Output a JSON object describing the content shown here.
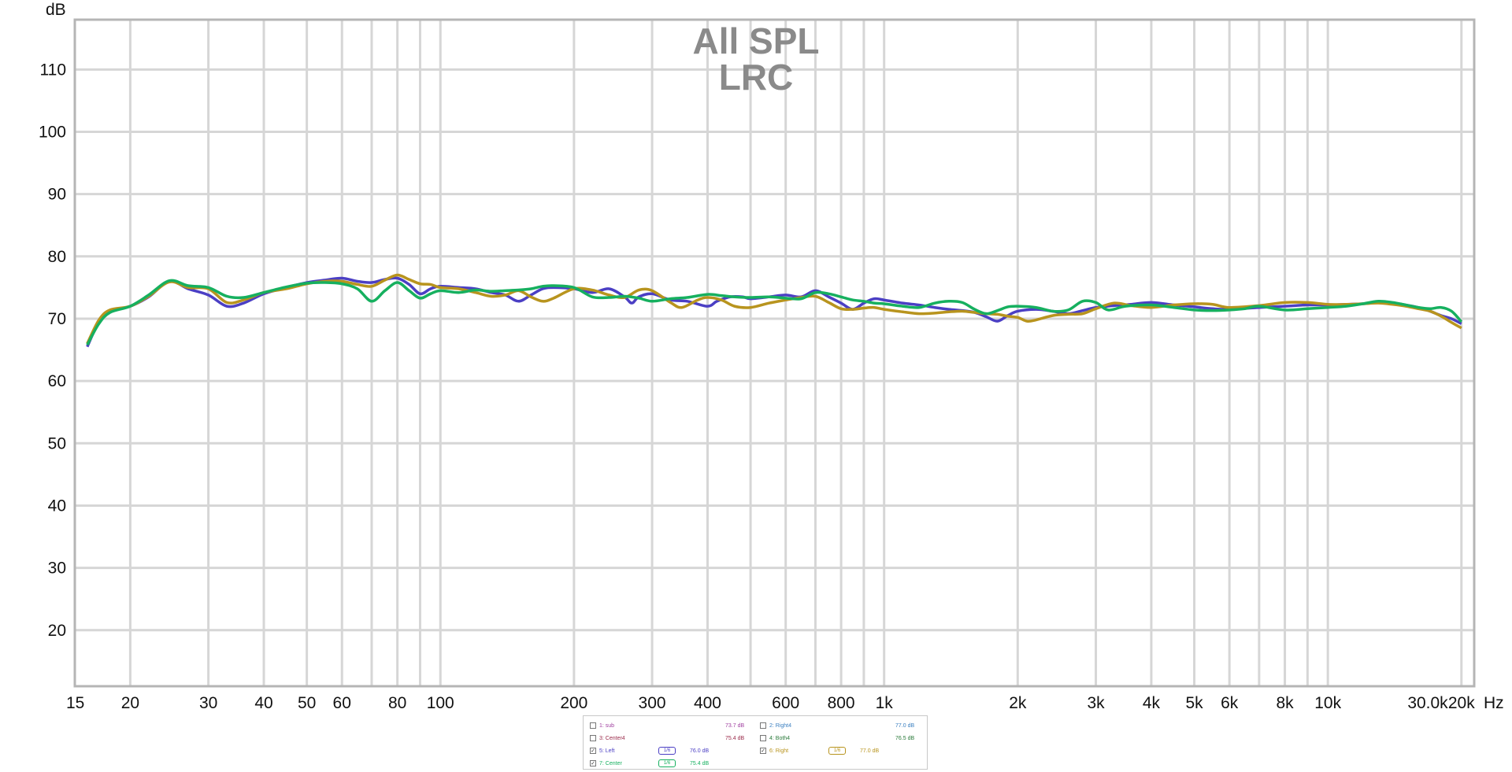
{
  "chart_data": {
    "type": "line",
    "title": "All SPL",
    "subtitle": "LRC",
    "ylabel": "dB",
    "xunit": "Hz",
    "xscale": "log",
    "xlim": [
      15,
      30000
    ],
    "ylim": [
      11,
      118
    ],
    "grid": true,
    "xticks": [
      {
        "v": 15,
        "label": "15"
      },
      {
        "v": 20,
        "label": "20"
      },
      {
        "v": 30,
        "label": "30"
      },
      {
        "v": 40,
        "label": "40"
      },
      {
        "v": 50,
        "label": "50"
      },
      {
        "v": 60,
        "label": "60"
      },
      {
        "v": 80,
        "label": "80"
      },
      {
        "v": 100,
        "label": "100"
      },
      {
        "v": 200,
        "label": "200"
      },
      {
        "v": 300,
        "label": "300"
      },
      {
        "v": 400,
        "label": "400"
      },
      {
        "v": 600,
        "label": "600"
      },
      {
        "v": 800,
        "label": "800"
      },
      {
        "v": 1000,
        "label": "1k"
      },
      {
        "v": 2000,
        "label": "2k"
      },
      {
        "v": 3000,
        "label": "3k"
      },
      {
        "v": 4000,
        "label": "4k"
      },
      {
        "v": 5000,
        "label": "5k"
      },
      {
        "v": 6000,
        "label": "6k"
      },
      {
        "v": 8000,
        "label": "8k"
      },
      {
        "v": 10000,
        "label": "10k"
      },
      {
        "v": 20000,
        "label": "20k"
      },
      {
        "v": 30000,
        "label": "30.0k"
      }
    ],
    "xgrid": [
      20,
      30,
      40,
      50,
      60,
      70,
      80,
      90,
      100,
      200,
      300,
      400,
      500,
      600,
      700,
      800,
      900,
      1000,
      2000,
      3000,
      4000,
      5000,
      6000,
      7000,
      8000,
      9000,
      10000,
      20000
    ],
    "yticks": [
      20,
      30,
      40,
      50,
      60,
      70,
      80,
      90,
      100,
      110
    ],
    "series": [
      {
        "name": "5: Left",
        "color": "#4b3fc4",
        "points": [
          [
            16,
            65.5
          ],
          [
            17,
            69.5
          ],
          [
            18,
            71.2
          ],
          [
            20,
            72
          ],
          [
            22,
            73.5
          ],
          [
            24.5,
            76
          ],
          [
            27,
            74.8
          ],
          [
            30,
            73.8
          ],
          [
            33,
            72
          ],
          [
            36,
            72.5
          ],
          [
            40,
            74
          ],
          [
            45,
            75
          ],
          [
            50,
            75.8
          ],
          [
            55,
            76.2
          ],
          [
            60,
            76.5
          ],
          [
            65,
            76
          ],
          [
            70,
            75.8
          ],
          [
            75,
            76.3
          ],
          [
            80,
            76.5
          ],
          [
            85,
            75.5
          ],
          [
            90,
            74
          ],
          [
            95,
            74.8
          ],
          [
            100,
            75.2
          ],
          [
            110,
            75
          ],
          [
            120,
            74.8
          ],
          [
            130,
            74.2
          ],
          [
            140,
            73.8
          ],
          [
            150,
            72.8
          ],
          [
            160,
            73.8
          ],
          [
            170,
            74.8
          ],
          [
            180,
            75
          ],
          [
            200,
            74.8
          ],
          [
            220,
            74.2
          ],
          [
            240,
            74.8
          ],
          [
            260,
            73.5
          ],
          [
            270,
            72.5
          ],
          [
            280,
            73.5
          ],
          [
            300,
            74
          ],
          [
            330,
            73
          ],
          [
            360,
            72.8
          ],
          [
            400,
            72
          ],
          [
            420,
            72.8
          ],
          [
            450,
            73.5
          ],
          [
            480,
            73.5
          ],
          [
            500,
            73.2
          ],
          [
            550,
            73.5
          ],
          [
            600,
            73.8
          ],
          [
            650,
            73.5
          ],
          [
            700,
            74.5
          ],
          [
            750,
            73.5
          ],
          [
            800,
            72.5
          ],
          [
            850,
            71.5
          ],
          [
            900,
            72.5
          ],
          [
            950,
            73.2
          ],
          [
            1000,
            73
          ],
          [
            1100,
            72.5
          ],
          [
            1200,
            72.2
          ],
          [
            1300,
            71.8
          ],
          [
            1400,
            71.5
          ],
          [
            1500,
            71.3
          ],
          [
            1600,
            71
          ],
          [
            1700,
            70.3
          ],
          [
            1800,
            69.6
          ],
          [
            1900,
            70.5
          ],
          [
            2000,
            71.2
          ],
          [
            2200,
            71.5
          ],
          [
            2400,
            71.2
          ],
          [
            2600,
            70.8
          ],
          [
            2800,
            71.3
          ],
          [
            3000,
            71.8
          ],
          [
            3300,
            72.1
          ],
          [
            3600,
            72.3
          ],
          [
            4000,
            72.6
          ],
          [
            4500,
            72.2
          ],
          [
            5000,
            71.9
          ],
          [
            5500,
            71.6
          ],
          [
            6000,
            71.5
          ],
          [
            7000,
            71.8
          ],
          [
            8000,
            72
          ],
          [
            9000,
            72.2
          ],
          [
            10000,
            72.2
          ],
          [
            11000,
            72.3
          ],
          [
            12000,
            72.4
          ],
          [
            13000,
            72.6
          ],
          [
            14000,
            72.5
          ],
          [
            15000,
            72.2
          ],
          [
            16000,
            71.8
          ],
          [
            17000,
            71.2
          ],
          [
            18000,
            70.5
          ],
          [
            19000,
            70
          ],
          [
            20000,
            69.2
          ]
        ]
      },
      {
        "name": "6: Right",
        "color": "#b8941e",
        "points": [
          [
            16,
            66
          ],
          [
            17,
            69.8
          ],
          [
            18,
            71.4
          ],
          [
            20,
            72
          ],
          [
            22,
            73.6
          ],
          [
            24.5,
            75.9
          ],
          [
            27,
            75
          ],
          [
            30,
            74.8
          ],
          [
            33,
            72.6
          ],
          [
            36,
            73
          ],
          [
            40,
            74.2
          ],
          [
            45,
            74.8
          ],
          [
            50,
            75.6
          ],
          [
            55,
            76
          ],
          [
            60,
            76
          ],
          [
            65,
            75.5
          ],
          [
            70,
            75.2
          ],
          [
            75,
            76.2
          ],
          [
            80,
            77
          ],
          [
            85,
            76.3
          ],
          [
            90,
            75.6
          ],
          [
            95,
            75.5
          ],
          [
            100,
            75
          ],
          [
            110,
            74.8
          ],
          [
            120,
            74.2
          ],
          [
            130,
            73.6
          ],
          [
            140,
            73.8
          ],
          [
            150,
            74.5
          ],
          [
            160,
            73.5
          ],
          [
            170,
            72.8
          ],
          [
            180,
            73.3
          ],
          [
            200,
            74.8
          ],
          [
            220,
            74.6
          ],
          [
            240,
            73.8
          ],
          [
            260,
            73.4
          ],
          [
            280,
            74.6
          ],
          [
            300,
            74.5
          ],
          [
            330,
            72.6
          ],
          [
            350,
            71.8
          ],
          [
            380,
            73
          ],
          [
            400,
            73.4
          ],
          [
            430,
            73
          ],
          [
            460,
            72
          ],
          [
            500,
            71.8
          ],
          [
            550,
            72.5
          ],
          [
            600,
            73
          ],
          [
            650,
            73.4
          ],
          [
            700,
            73.6
          ],
          [
            750,
            72.6
          ],
          [
            800,
            71.6
          ],
          [
            850,
            71.5
          ],
          [
            900,
            71.7
          ],
          [
            950,
            71.8
          ],
          [
            1000,
            71.5
          ],
          [
            1100,
            71.1
          ],
          [
            1200,
            70.8
          ],
          [
            1300,
            70.9
          ],
          [
            1400,
            71.1
          ],
          [
            1500,
            71.2
          ],
          [
            1600,
            71
          ],
          [
            1700,
            70.8
          ],
          [
            1800,
            70.7
          ],
          [
            1900,
            70.4
          ],
          [
            2000,
            70.2
          ],
          [
            2100,
            69.6
          ],
          [
            2200,
            69.8
          ],
          [
            2400,
            70.5
          ],
          [
            2600,
            70.7
          ],
          [
            2800,
            70.8
          ],
          [
            3000,
            71.6
          ],
          [
            3300,
            72.5
          ],
          [
            3600,
            72.1
          ],
          [
            4000,
            71.8
          ],
          [
            4500,
            72.2
          ],
          [
            5000,
            72.4
          ],
          [
            5500,
            72.3
          ],
          [
            6000,
            71.8
          ],
          [
            7000,
            72.1
          ],
          [
            8000,
            72.6
          ],
          [
            9000,
            72.6
          ],
          [
            10000,
            72.3
          ],
          [
            11000,
            72.3
          ],
          [
            12000,
            72.4
          ],
          [
            13000,
            72.5
          ],
          [
            14000,
            72.3
          ],
          [
            15000,
            72
          ],
          [
            16000,
            71.6
          ],
          [
            17000,
            71.2
          ],
          [
            18000,
            70.4
          ],
          [
            19000,
            69.4
          ],
          [
            20000,
            68.5
          ]
        ]
      },
      {
        "name": "7: Center",
        "color": "#16b05f",
        "points": [
          [
            16,
            65.8
          ],
          [
            17,
            69.2
          ],
          [
            18,
            71
          ],
          [
            20,
            72
          ],
          [
            22,
            73.8
          ],
          [
            24.5,
            76.1
          ],
          [
            27,
            75.3
          ],
          [
            30,
            75
          ],
          [
            33,
            73.6
          ],
          [
            36,
            73.4
          ],
          [
            40,
            74.2
          ],
          [
            45,
            75.1
          ],
          [
            50,
            75.7
          ],
          [
            55,
            75.8
          ],
          [
            60,
            75.6
          ],
          [
            65,
            74.8
          ],
          [
            70,
            72.8
          ],
          [
            75,
            74.5
          ],
          [
            80,
            75.8
          ],
          [
            85,
            74.5
          ],
          [
            90,
            73.3
          ],
          [
            95,
            74
          ],
          [
            100,
            74.5
          ],
          [
            110,
            74.2
          ],
          [
            120,
            74.6
          ],
          [
            130,
            74.4
          ],
          [
            140,
            74.5
          ],
          [
            150,
            74.6
          ],
          [
            160,
            74.8
          ],
          [
            170,
            75.2
          ],
          [
            180,
            75.3
          ],
          [
            200,
            75
          ],
          [
            220,
            73.5
          ],
          [
            240,
            73.4
          ],
          [
            260,
            73.6
          ],
          [
            280,
            73.3
          ],
          [
            300,
            72.8
          ],
          [
            330,
            73.2
          ],
          [
            360,
            73.4
          ],
          [
            400,
            73.9
          ],
          [
            430,
            73.7
          ],
          [
            460,
            73.5
          ],
          [
            500,
            73.4
          ],
          [
            550,
            73.5
          ],
          [
            600,
            73.3
          ],
          [
            650,
            73.2
          ],
          [
            700,
            74.2
          ],
          [
            750,
            74
          ],
          [
            800,
            73.5
          ],
          [
            850,
            73
          ],
          [
            900,
            72.8
          ],
          [
            950,
            72.5
          ],
          [
            1000,
            72.4
          ],
          [
            1100,
            72
          ],
          [
            1200,
            71.8
          ],
          [
            1300,
            72.5
          ],
          [
            1400,
            72.8
          ],
          [
            1500,
            72.6
          ],
          [
            1600,
            71.5
          ],
          [
            1700,
            70.8
          ],
          [
            1800,
            71.3
          ],
          [
            1900,
            71.9
          ],
          [
            2000,
            72
          ],
          [
            2200,
            71.8
          ],
          [
            2400,
            71.2
          ],
          [
            2600,
            71.4
          ],
          [
            2800,
            72.8
          ],
          [
            3000,
            72.6
          ],
          [
            3200,
            71.4
          ],
          [
            3500,
            72
          ],
          [
            4000,
            72.2
          ],
          [
            4500,
            71.8
          ],
          [
            5000,
            71.4
          ],
          [
            5500,
            71.3
          ],
          [
            6000,
            71.4
          ],
          [
            6500,
            71.6
          ],
          [
            7000,
            72
          ],
          [
            8000,
            71.4
          ],
          [
            9000,
            71.6
          ],
          [
            10000,
            71.8
          ],
          [
            11000,
            72
          ],
          [
            12000,
            72.4
          ],
          [
            13000,
            72.8
          ],
          [
            14000,
            72.6
          ],
          [
            15000,
            72.2
          ],
          [
            16000,
            71.8
          ],
          [
            17000,
            71.6
          ],
          [
            18000,
            71.8
          ],
          [
            19000,
            71.2
          ],
          [
            20000,
            69.5
          ]
        ]
      }
    ]
  },
  "legend": {
    "items": [
      {
        "id": "sub",
        "label": "1: sub",
        "checked": false,
        "level": "73.7 dB",
        "color": "#a040a0",
        "smooth": ""
      },
      {
        "id": "right4",
        "label": "2: Right4",
        "checked": false,
        "level": "77.0 dB",
        "color": "#3a7fc0",
        "smooth": ""
      },
      {
        "id": "center4",
        "label": "3: Center4",
        "checked": false,
        "level": "75.4 dB",
        "color": "#9a2a4a",
        "smooth": ""
      },
      {
        "id": "both4",
        "label": "4: Both4",
        "checked": false,
        "level": "76.5 dB",
        "color": "#2a7a3a",
        "smooth": ""
      },
      {
        "id": "left",
        "label": "5: Left",
        "checked": true,
        "level": "76.0 dB",
        "color": "#4b3fc4",
        "smooth": "1/6"
      },
      {
        "id": "right",
        "label": "6: Right",
        "checked": true,
        "level": "77.0 dB",
        "color": "#b8941e",
        "smooth": "1/6"
      },
      {
        "id": "center",
        "label": "7: Center",
        "checked": true,
        "level": "75.4 dB",
        "color": "#16b05f",
        "smooth": "1/6"
      }
    ]
  }
}
